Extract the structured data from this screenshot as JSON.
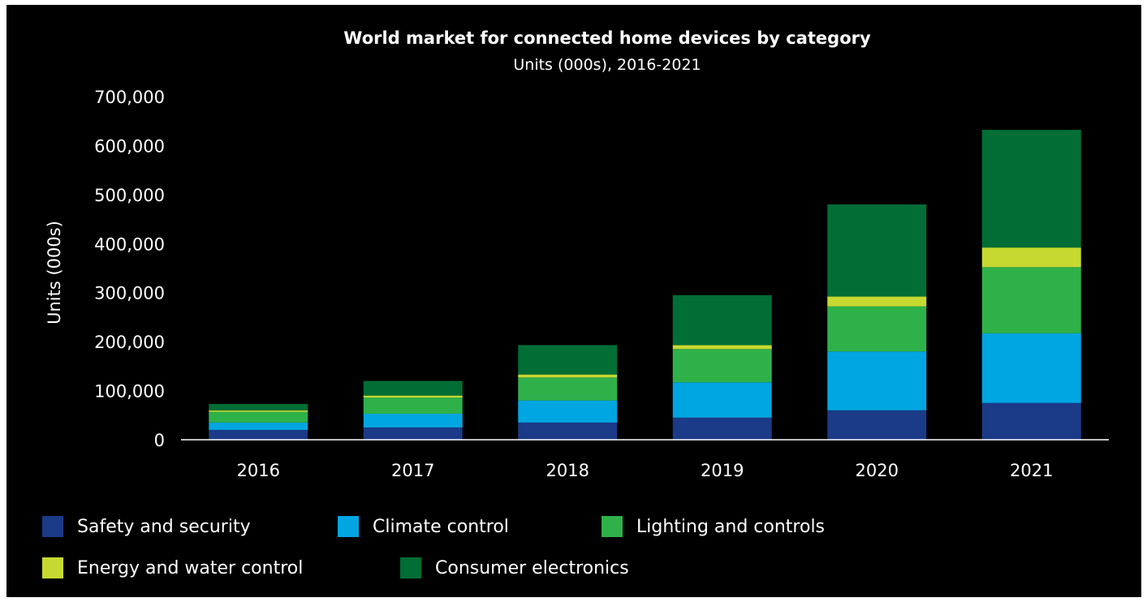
{
  "chart_data": {
    "type": "bar",
    "stacked": true,
    "title": "World market for connected home devices by category",
    "subtitle": "Units (000s), 2016-2021",
    "xlabel": "",
    "ylabel": "Units (000s)",
    "ylim": [
      0,
      700000
    ],
    "yticks": [
      0,
      100000,
      200000,
      300000,
      400000,
      500000,
      600000,
      700000
    ],
    "ytick_labels": [
      "0",
      "100,000",
      "200,000",
      "300,000",
      "400,000",
      "500,000",
      "600,000",
      "700,000"
    ],
    "grid": false,
    "legend_position": "bottom",
    "categories": [
      "2016",
      "2017",
      "2018",
      "2019",
      "2020",
      "2021"
    ],
    "series": [
      {
        "name": "Safety and security",
        "color": "#1b3a87",
        "values": [
          20000,
          25000,
          35000,
          45000,
          60000,
          75000
        ]
      },
      {
        "name": "Climate control",
        "color": "#00a6e2",
        "values": [
          15000,
          28000,
          45000,
          72000,
          120000,
          142000
        ]
      },
      {
        "name": "Lighting and controls",
        "color": "#2fb14a",
        "values": [
          22000,
          33000,
          47000,
          68000,
          92000,
          135000
        ]
      },
      {
        "name": "Energy and water control",
        "color": "#c6d930",
        "values": [
          3000,
          4000,
          6000,
          8000,
          20000,
          40000
        ]
      },
      {
        "name": "Consumer electronics",
        "color": "#006e35",
        "values": [
          13000,
          30000,
          60000,
          102000,
          188000,
          240000
        ]
      }
    ]
  }
}
